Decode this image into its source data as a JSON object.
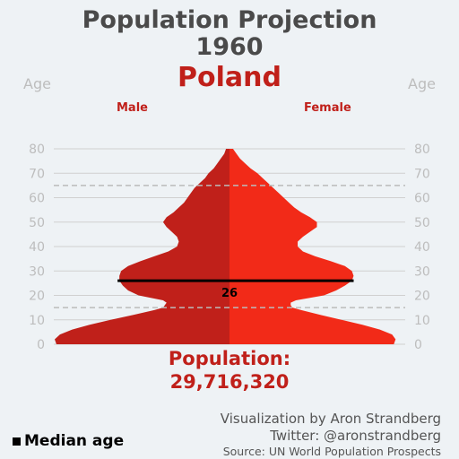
{
  "header": {
    "title_line1": "Population Projection",
    "title_line2": "1960",
    "country": "Poland"
  },
  "labels": {
    "age_left": "Age",
    "age_right": "Age",
    "male": "Male",
    "female": "Female",
    "population_label": "Population:",
    "population_value": "29,716,320",
    "legend_median": "Median age"
  },
  "credits": {
    "line1": "Visualization by Aron Strandberg",
    "line2": "Twitter: @aronstrandberg",
    "line3": "Source: UN World Population Prospects"
  },
  "chart_data": {
    "type": "area",
    "title": "Population Projection 1960",
    "ylabel": "Age",
    "ylim": [
      0,
      80
    ],
    "yticks": [
      0,
      10,
      20,
      30,
      40,
      50,
      60,
      70,
      80
    ],
    "reference_lines": [
      15,
      65
    ],
    "median_age": 26,
    "max_share": 1.0,
    "profile": {
      "ages": [
        0,
        2,
        4,
        6,
        8,
        10,
        12,
        14,
        15,
        16,
        17,
        18,
        19,
        20,
        22,
        24,
        26,
        28,
        30,
        32,
        34,
        36,
        38,
        40,
        42,
        44,
        46,
        48,
        50,
        52,
        54,
        56,
        58,
        60,
        62,
        64,
        66,
        68,
        70,
        72,
        74,
        76,
        78,
        80
      ],
      "male": [
        0.99,
        1.0,
        0.97,
        0.9,
        0.8,
        0.68,
        0.55,
        0.43,
        0.38,
        0.37,
        0.36,
        0.38,
        0.45,
        0.52,
        0.58,
        0.61,
        0.63,
        0.63,
        0.62,
        0.58,
        0.51,
        0.43,
        0.35,
        0.3,
        0.29,
        0.3,
        0.33,
        0.36,
        0.38,
        0.36,
        0.32,
        0.29,
        0.26,
        0.24,
        0.22,
        0.2,
        0.17,
        0.14,
        0.12,
        0.09,
        0.07,
        0.05,
        0.03,
        0.02
      ],
      "female": [
        0.94,
        0.95,
        0.93,
        0.86,
        0.76,
        0.64,
        0.52,
        0.41,
        0.36,
        0.35,
        0.35,
        0.38,
        0.46,
        0.54,
        0.61,
        0.66,
        0.7,
        0.71,
        0.7,
        0.66,
        0.58,
        0.49,
        0.42,
        0.39,
        0.39,
        0.42,
        0.46,
        0.5,
        0.5,
        0.46,
        0.41,
        0.37,
        0.34,
        0.31,
        0.28,
        0.25,
        0.22,
        0.19,
        0.16,
        0.12,
        0.09,
        0.06,
        0.04,
        0.02
      ]
    }
  },
  "colors": {
    "male": "#c0201a",
    "female": "#f22a18",
    "accent": "#c0201a",
    "grid": "#d0d0d0",
    "axis_text": "#bdbdbd"
  }
}
